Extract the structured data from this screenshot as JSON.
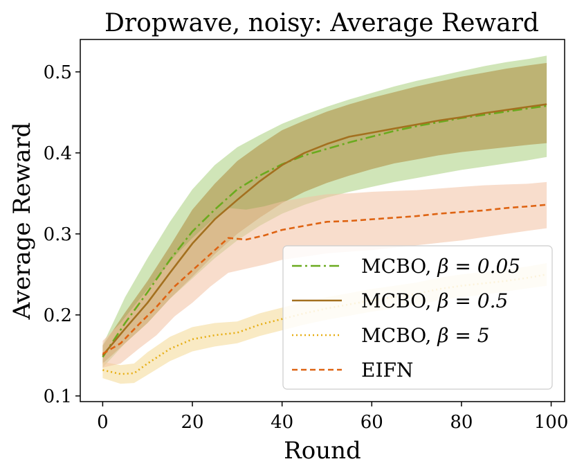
{
  "chart_data": {
    "type": "line",
    "title": "Dropwave, noisy: Average Reward",
    "xlabel": "Round",
    "ylabel": "Average Reward",
    "xlim": [
      -5,
      103
    ],
    "ylim": [
      0.093,
      0.54
    ],
    "xticks": [
      0,
      20,
      40,
      60,
      80,
      100
    ],
    "yticks": [
      0.1,
      0.2,
      0.3,
      0.4,
      0.5
    ],
    "xtick_labels": [
      "0",
      "20",
      "40",
      "60",
      "80",
      "100"
    ],
    "ytick_labels": [
      "0.1",
      "0.2",
      "0.3",
      "0.4",
      "0.5"
    ],
    "grid": false,
    "legend": "lower-right",
    "series": [
      {
        "name": "MCBO, β = 0.05",
        "name_main": "MCBO, ",
        "name_param": "β = 0.05",
        "color": "#6aaa1e",
        "band_color": "#a9cf7e",
        "dash": "14,5,3,5",
        "x": [
          0,
          5,
          10,
          15,
          20,
          25,
          30,
          35,
          40,
          45,
          50,
          55,
          60,
          65,
          70,
          75,
          80,
          85,
          90,
          95,
          99
        ],
        "y": [
          0.148,
          0.19,
          0.228,
          0.268,
          0.303,
          0.33,
          0.355,
          0.372,
          0.386,
          0.397,
          0.405,
          0.413,
          0.42,
          0.427,
          0.433,
          0.438,
          0.443,
          0.447,
          0.451,
          0.455,
          0.458
        ],
        "lower": [
          0.135,
          0.165,
          0.19,
          0.22,
          0.245,
          0.27,
          0.292,
          0.31,
          0.325,
          0.336,
          0.345,
          0.352,
          0.358,
          0.364,
          0.369,
          0.374,
          0.379,
          0.383,
          0.387,
          0.391,
          0.395
        ],
        "upper": [
          0.163,
          0.222,
          0.27,
          0.315,
          0.355,
          0.385,
          0.407,
          0.422,
          0.436,
          0.447,
          0.457,
          0.466,
          0.474,
          0.482,
          0.489,
          0.495,
          0.501,
          0.507,
          0.512,
          0.516,
          0.52
        ]
      },
      {
        "name": "MCBO, β = 0.5",
        "name_main": "MCBO, ",
        "name_param": "β = 0.5",
        "color": "#a3701f",
        "band_color": "#b7a25e",
        "dash": "",
        "x": [
          0,
          5,
          10,
          15,
          20,
          25,
          30,
          35,
          40,
          45,
          50,
          55,
          60,
          65,
          70,
          75,
          80,
          85,
          90,
          95,
          99
        ],
        "y": [
          0.15,
          0.183,
          0.215,
          0.252,
          0.288,
          0.318,
          0.342,
          0.365,
          0.385,
          0.4,
          0.411,
          0.42,
          0.425,
          0.43,
          0.435,
          0.44,
          0.444,
          0.449,
          0.453,
          0.457,
          0.46
        ],
        "lower": [
          0.14,
          0.165,
          0.19,
          0.22,
          0.247,
          0.275,
          0.3,
          0.32,
          0.338,
          0.352,
          0.363,
          0.372,
          0.38,
          0.387,
          0.392,
          0.397,
          0.401,
          0.404,
          0.407,
          0.41,
          0.412
        ],
        "upper": [
          0.162,
          0.203,
          0.242,
          0.285,
          0.33,
          0.362,
          0.39,
          0.41,
          0.428,
          0.44,
          0.451,
          0.46,
          0.468,
          0.475,
          0.482,
          0.488,
          0.494,
          0.499,
          0.504,
          0.508,
          0.511
        ]
      },
      {
        "name": "MCBO, β = 5",
        "name_main": "MCBO, ",
        "name_param": "β = 5",
        "color": "#e6ad12",
        "band_color": "#f4d893",
        "dash": "2,4",
        "x": [
          0,
          4,
          7,
          10,
          15,
          20,
          25,
          30,
          35,
          40,
          45,
          50,
          55,
          60,
          65,
          70,
          75,
          80,
          85,
          90,
          95,
          99
        ],
        "y": [
          0.132,
          0.127,
          0.128,
          0.14,
          0.158,
          0.17,
          0.175,
          0.178,
          0.188,
          0.195,
          0.202,
          0.208,
          0.213,
          0.218,
          0.222,
          0.226,
          0.232,
          0.236,
          0.239,
          0.242,
          0.246,
          0.25
        ],
        "lower": [
          0.122,
          0.115,
          0.116,
          0.126,
          0.143,
          0.155,
          0.161,
          0.165,
          0.174,
          0.181,
          0.188,
          0.194,
          0.199,
          0.204,
          0.208,
          0.212,
          0.218,
          0.222,
          0.225,
          0.229,
          0.233,
          0.236
        ],
        "upper": [
          0.142,
          0.138,
          0.14,
          0.154,
          0.173,
          0.185,
          0.19,
          0.192,
          0.202,
          0.209,
          0.216,
          0.222,
          0.227,
          0.232,
          0.236,
          0.24,
          0.246,
          0.25,
          0.253,
          0.256,
          0.26,
          0.264
        ]
      },
      {
        "name": "EIFN",
        "name_main": "EIFN",
        "name_param": "",
        "color": "#de6312",
        "band_color": "#f2c1a2",
        "dash": "8,5",
        "x": [
          0,
          4,
          8,
          12,
          16,
          20,
          24,
          28,
          32,
          36,
          40,
          45,
          50,
          55,
          60,
          65,
          70,
          75,
          80,
          85,
          90,
          95,
          99
        ],
        "y": [
          0.152,
          0.165,
          0.188,
          0.21,
          0.235,
          0.255,
          0.275,
          0.295,
          0.293,
          0.298,
          0.305,
          0.31,
          0.315,
          0.316,
          0.318,
          0.32,
          0.322,
          0.325,
          0.327,
          0.329,
          0.332,
          0.334,
          0.336
        ],
        "lower": [
          0.135,
          0.14,
          0.158,
          0.175,
          0.198,
          0.215,
          0.235,
          0.252,
          0.257,
          0.262,
          0.268,
          0.272,
          0.276,
          0.278,
          0.28,
          0.283,
          0.286,
          0.289,
          0.292,
          0.296,
          0.3,
          0.304,
          0.307
        ],
        "upper": [
          0.168,
          0.19,
          0.218,
          0.245,
          0.272,
          0.295,
          0.315,
          0.332,
          0.33,
          0.334,
          0.34,
          0.345,
          0.349,
          0.35,
          0.352,
          0.353,
          0.354,
          0.356,
          0.358,
          0.36,
          0.361,
          0.362,
          0.364
        ]
      }
    ]
  }
}
